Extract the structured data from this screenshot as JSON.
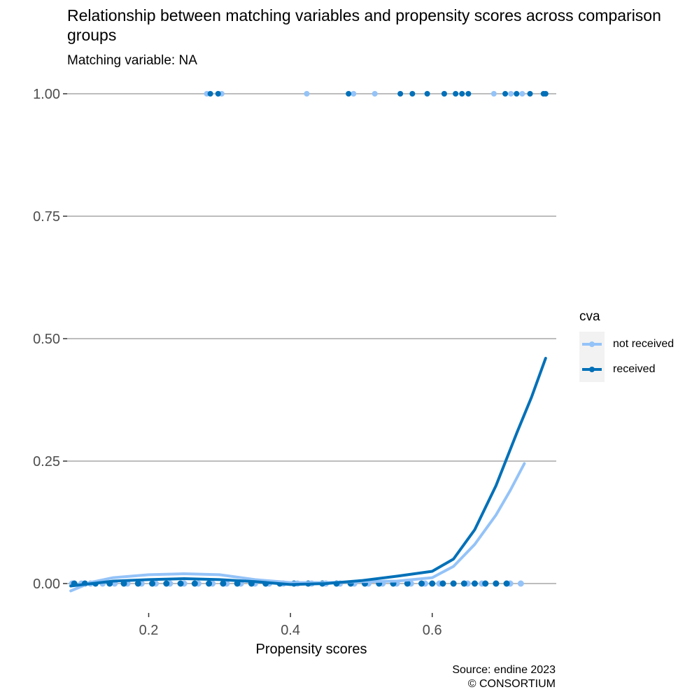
{
  "title": "Relationship between matching variables and propensity scores across comparison groups",
  "subtitle": "Matching variable: NA",
  "caption_line1": "Source: endine 2023",
  "caption_line2": "© CONSORTIUM",
  "legend": {
    "title": "cva",
    "items": [
      {
        "label": "not received",
        "color": "#94c3f8"
      },
      {
        "label": "received",
        "color": "#0070b8"
      }
    ]
  },
  "chart_data": {
    "type": "scatter",
    "xlabel": "Propensity scores",
    "ylabel": "",
    "xlim": [
      0.085,
      0.775
    ],
    "ylim": [
      -0.06,
      1.06
    ],
    "x_ticks": [
      "0.2",
      "0.4",
      "0.6"
    ],
    "x_tick_values": [
      0.2,
      0.4,
      0.6
    ],
    "y_ticks": [
      "0.00",
      "0.25",
      "0.50",
      "0.75",
      "1.00"
    ],
    "y_tick_values": [
      0,
      0.25,
      0.5,
      0.75,
      1
    ],
    "grid": "horizontal major",
    "legend_position": "right",
    "series": [
      {
        "name": "not received",
        "color": "#94c3f8",
        "points_y1": [
          0.282,
          0.298,
          0.303,
          0.423,
          0.489,
          0.519,
          0.617,
          0.687,
          0.711,
          0.727
        ],
        "points_y0": [
          0.092,
          0.105,
          0.118,
          0.135,
          0.152,
          0.17,
          0.19,
          0.21,
          0.23,
          0.25,
          0.27,
          0.29,
          0.31,
          0.33,
          0.35,
          0.37,
          0.39,
          0.41,
          0.43,
          0.45,
          0.47,
          0.49,
          0.51,
          0.53,
          0.55,
          0.57,
          0.59,
          0.61,
          0.63,
          0.65,
          0.67,
          0.69,
          0.71,
          0.725
        ],
        "smooth": {
          "x": [
            0.09,
            0.12,
            0.15,
            0.2,
            0.25,
            0.3,
            0.35,
            0.4,
            0.45,
            0.5,
            0.55,
            0.6,
            0.63,
            0.66,
            0.69,
            0.71,
            0.73
          ],
          "y": [
            -0.015,
            0.003,
            0.012,
            0.018,
            0.02,
            0.018,
            0.008,
            0.002,
            0.002,
            0.004,
            0.005,
            0.012,
            0.035,
            0.08,
            0.14,
            0.19,
            0.245
          ]
        }
      },
      {
        "name": "received",
        "color": "#0070b8",
        "points_y1": [
          0.287,
          0.298,
          0.482,
          0.555,
          0.572,
          0.593,
          0.617,
          0.633,
          0.642,
          0.651,
          0.703,
          0.719,
          0.738,
          0.757,
          0.76
        ],
        "points_y0": [
          0.095,
          0.11,
          0.125,
          0.145,
          0.165,
          0.185,
          0.205,
          0.225,
          0.245,
          0.265,
          0.285,
          0.305,
          0.325,
          0.345,
          0.365,
          0.385,
          0.405,
          0.425,
          0.445,
          0.465,
          0.485,
          0.505,
          0.525,
          0.545,
          0.565,
          0.585,
          0.6,
          0.615,
          0.63,
          0.645,
          0.66,
          0.675,
          0.69,
          0.705
        ],
        "smooth": {
          "x": [
            0.09,
            0.12,
            0.15,
            0.2,
            0.25,
            0.3,
            0.35,
            0.4,
            0.45,
            0.5,
            0.55,
            0.6,
            0.63,
            0.66,
            0.69,
            0.72,
            0.74,
            0.76
          ],
          "y": [
            -0.005,
            0.0,
            0.005,
            0.008,
            0.01,
            0.008,
            0.004,
            -0.002,
            0.0,
            0.006,
            0.015,
            0.025,
            0.05,
            0.11,
            0.2,
            0.31,
            0.38,
            0.46
          ]
        }
      }
    ]
  }
}
